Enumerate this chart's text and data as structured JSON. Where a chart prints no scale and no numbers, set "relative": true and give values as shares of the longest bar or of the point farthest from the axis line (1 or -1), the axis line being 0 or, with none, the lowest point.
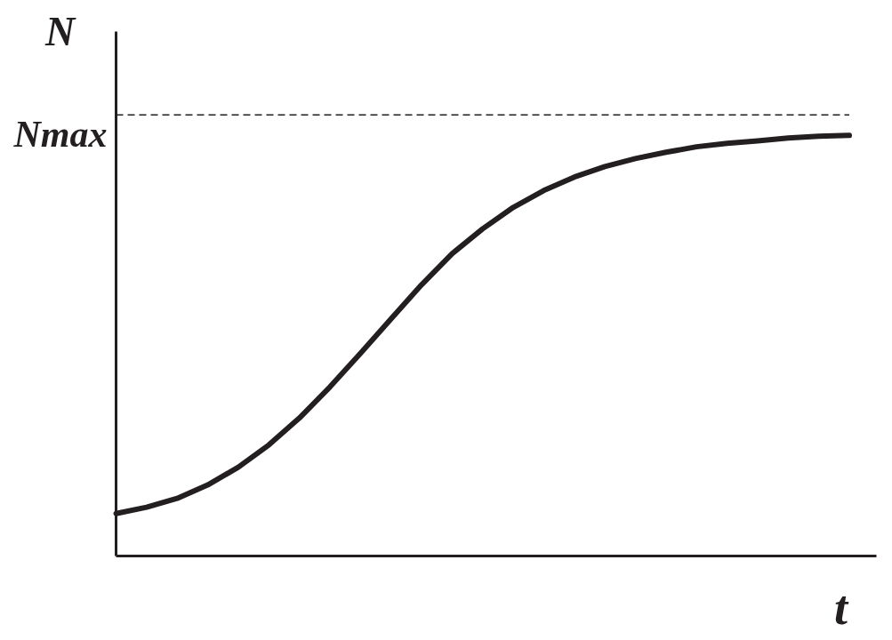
{
  "chart_data": {
    "type": "line",
    "relative": true,
    "xlabel": "t",
    "ylabel": "N",
    "categories": [
      null,
      null,
      null,
      null,
      null,
      null,
      null,
      null,
      null,
      null,
      null,
      null,
      null,
      null,
      null,
      null,
      null,
      null,
      null,
      null,
      null,
      null,
      null,
      null,
      null
    ],
    "series": [
      {
        "color": "#231f20",
        "values": [
          0.101,
          0.116,
          0.137,
          0.169,
          0.211,
          0.264,
          0.328,
          0.402,
          0.482,
          0.564,
          0.645,
          0.719,
          0.778,
          0.829,
          0.869,
          0.901,
          0.926,
          0.945,
          0.96,
          0.973,
          0.981,
          0.987,
          0.994,
          0.998,
          1.0
        ]
      }
    ],
    "ref_lines": [
      {
        "axis": "y",
        "value": 1.049,
        "label": "Nmax",
        "color": "#231f20",
        "line_style": "dashed"
      }
    ],
    "line_style": "solid"
  }
}
